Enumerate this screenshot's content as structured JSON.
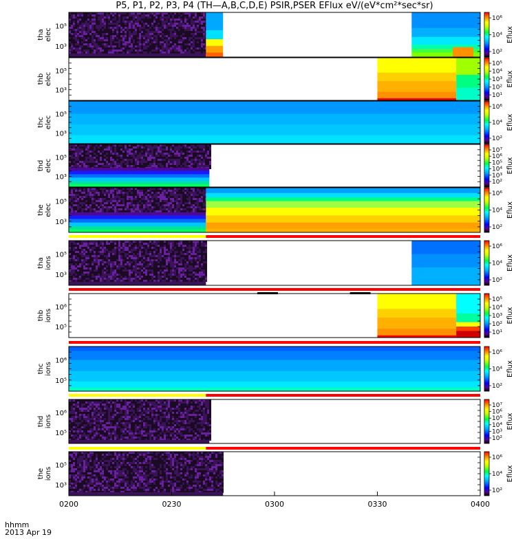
{
  "title": "P5, P1, P2, P3, P4 (TH—A,B,C,D,E) PSIR,PSER EFlux eV/(eV*cm²*sec*sr)",
  "footer": {
    "xlabel": "hhmm",
    "date": "2013 Apr 19"
  },
  "colors": {
    "yellow_bar": "#ffff00",
    "red_bar": "#ff0000",
    "frame": "#000000"
  },
  "chart_data": {
    "type": "heatmap",
    "x": {
      "ticks": [
        "0200",
        "0230",
        "0300",
        "0330",
        "0400"
      ],
      "range": [
        "02:00",
        "04:00"
      ]
    },
    "colorbar_label": "Eflux",
    "panels": [
      {
        "id": "tha-elec",
        "ylabel": [
          "tha",
          "elec"
        ],
        "yticks": [
          "10⁵",
          "10³"
        ],
        "cbar_ticks": [
          "10⁶",
          "10⁴",
          "10²"
        ],
        "segments": [
          {
            "t0": 0,
            "t1": 40,
            "style": "noise"
          },
          {
            "t0": 40,
            "t1": 45,
            "style": "elec_mid"
          },
          {
            "t0": 100,
            "t1": 120,
            "style": "elec_blue_hot"
          }
        ]
      },
      {
        "id": "thb-elec",
        "ylabel": [
          "thb",
          "elec"
        ],
        "yticks": [
          "10⁵",
          "10³"
        ],
        "cbar_ticks": [
          "10⁵",
          "10⁴",
          "10³",
          "10²",
          "10¹"
        ],
        "segments": [
          {
            "t0": 90,
            "t1": 113,
            "style": "hot"
          },
          {
            "t0": 113,
            "t1": 120,
            "style": "green"
          }
        ]
      },
      {
        "id": "thc-elec",
        "ylabel": [
          "thc",
          "elec"
        ],
        "yticks": [
          "10⁵",
          "10³"
        ],
        "cbar_ticks": [
          "10⁶",
          "10⁴",
          "10²"
        ],
        "segments": [
          {
            "t0": 0,
            "t1": 120,
            "style": "cyan"
          }
        ]
      },
      {
        "id": "thd-elec",
        "ylabel": [
          "thd",
          "elec"
        ],
        "yticks": [
          "10⁵",
          "10³"
        ],
        "cbar_ticks": [
          "10⁷",
          "10⁶",
          "10⁵",
          "10⁴",
          "10³",
          "10²"
        ],
        "segments": [
          {
            "t0": 0,
            "t1": 41,
            "style": "noise_band"
          }
        ]
      },
      {
        "id": "the-elec",
        "ylabel": [
          "the",
          "elec"
        ],
        "yticks": [
          "10⁵",
          "10³"
        ],
        "cbar_ticks": [
          "10⁶",
          "10⁴",
          "10²"
        ],
        "segments": [
          {
            "t0": 0,
            "t1": 40,
            "style": "noise_band"
          },
          {
            "t0": 40,
            "t1": 120,
            "style": "elec_warm"
          }
        ]
      },
      {
        "id": "tha-ions",
        "ylabel": [
          "tha",
          "ions"
        ],
        "yticks": [
          "10⁵",
          "10³"
        ],
        "cbar_ticks": [
          "10⁶",
          "10⁴",
          "10²"
        ],
        "segments": [
          {
            "t0": 0,
            "t1": 40,
            "style": "noise"
          },
          {
            "t0": 100,
            "t1": 120,
            "style": "blue"
          }
        ]
      },
      {
        "id": "thb-ions",
        "ylabel": [
          "thb",
          "ions"
        ],
        "yticks": [
          "10⁶",
          "10⁵"
        ],
        "cbar_ticks": [
          "10⁵",
          "10⁴",
          "10³",
          "10²",
          "10¹"
        ],
        "segments": [
          {
            "t0": 90,
            "t1": 113,
            "style": "hot"
          },
          {
            "t0": 113,
            "t1": 120,
            "style": "cyan_red"
          }
        ]
      },
      {
        "id": "thc-ions",
        "ylabel": [
          "thc",
          "ions"
        ],
        "yticks": [
          "10⁶",
          "10⁵"
        ],
        "cbar_ticks": [
          "10⁶",
          "10⁴",
          "10²"
        ],
        "segments": [
          {
            "t0": 0,
            "t1": 120,
            "style": "ion_blue"
          }
        ]
      },
      {
        "id": "thd-ions",
        "ylabel": [
          "thd",
          "ions"
        ],
        "yticks": [
          "10⁶",
          "10⁵"
        ],
        "cbar_ticks": [
          "10⁷",
          "10⁶",
          "10⁵",
          "10⁴",
          "10³",
          "10²"
        ],
        "segments": [
          {
            "t0": 0,
            "t1": 41,
            "style": "noise"
          }
        ]
      },
      {
        "id": "the-ions",
        "ylabel": [
          "the",
          "ions"
        ],
        "yticks": [
          "10⁵",
          "10³"
        ],
        "cbar_ticks": [
          "10⁶",
          "10⁴",
          "10²"
        ],
        "segments": [
          {
            "t0": 0,
            "t1": 45,
            "style": "noise"
          }
        ]
      }
    ],
    "mode_bars": [
      {
        "after": "the-elec",
        "segments": [
          {
            "t0": 0,
            "t1": 40,
            "color": "yellow"
          },
          {
            "t0": 40,
            "t1": 120,
            "color": "red"
          }
        ]
      },
      {
        "after": "tha-ions",
        "segments": [
          {
            "t0": 0,
            "t1": 120,
            "color": "red"
          }
        ]
      },
      {
        "after": "thb-ions",
        "segments": [
          {
            "t0": 0,
            "t1": 120,
            "color": "red"
          }
        ]
      },
      {
        "after": "thc-ions",
        "segments": [
          {
            "t0": 0,
            "t1": 40,
            "color": "yellow"
          },
          {
            "t0": 40,
            "t1": 120,
            "color": "red"
          }
        ]
      },
      {
        "after": "thd-ions",
        "segments": [
          {
            "t0": 0,
            "t1": 40,
            "color": "yellow"
          },
          {
            "t0": 40,
            "t1": 120,
            "color": "red"
          }
        ]
      }
    ]
  }
}
